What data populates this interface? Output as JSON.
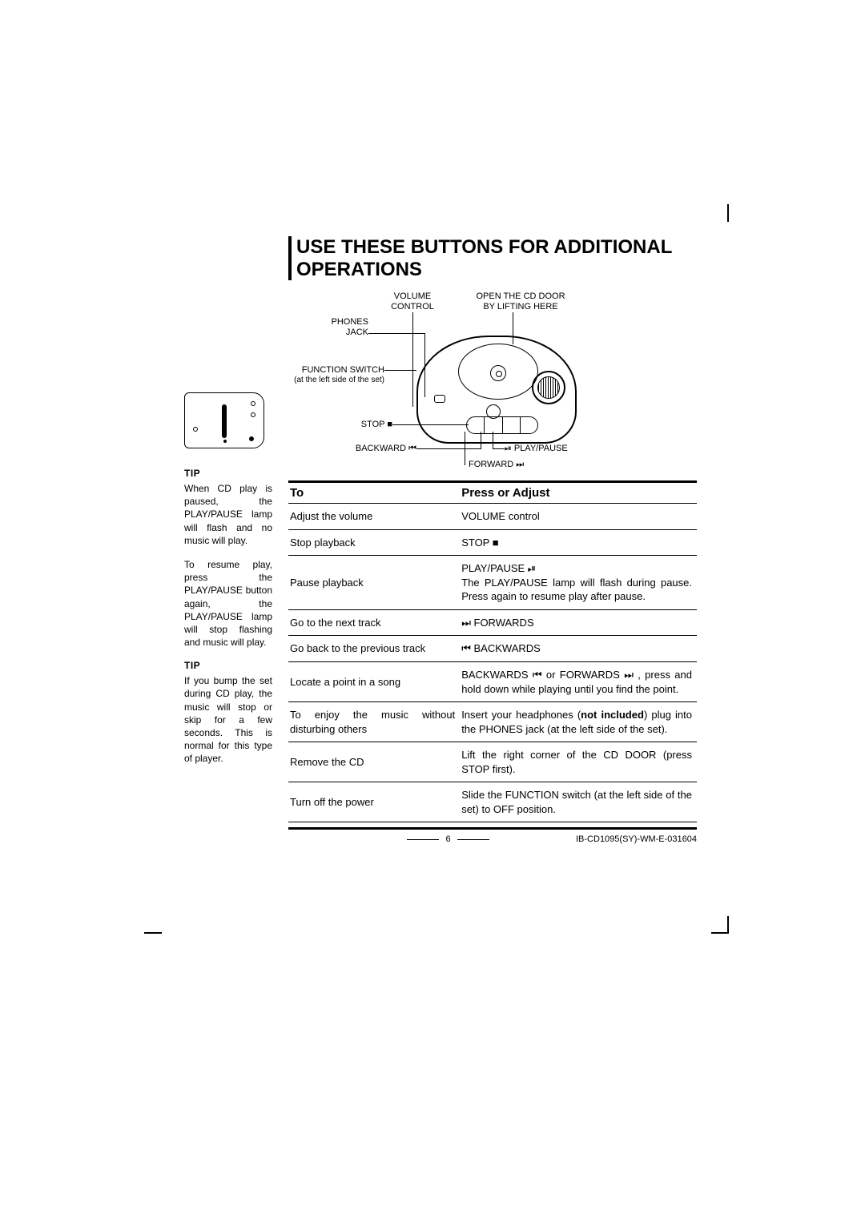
{
  "title": "USE THESE BUTTONS FOR ADDITIONAL OPERATIONS",
  "diagram": {
    "volume": "VOLUME\nCONTROL",
    "open": "OPEN THE CD DOOR\nBY LIFTING HERE",
    "phones": "PHONES\nJACK",
    "function": "FUNCTION SWITCH",
    "function_note": "(at the left side of the set)",
    "stop": "STOP ■",
    "backward": "BACKWARD ⏮",
    "forward": "FORWARD ⏭",
    "playpause": "⏯ PLAY/PAUSE"
  },
  "table": {
    "head_to": "To",
    "head_pa": "Press or Adjust",
    "rows": [
      {
        "to": "Adjust the volume",
        "pa": "VOLUME control"
      },
      {
        "to": "Stop playback",
        "pa": "STOP ■"
      },
      {
        "to": "Pause playback",
        "pa": "PLAY/PAUSE ⏯\nThe PLAY/PAUSE lamp will flash during pause. Press again to resume play after pause."
      },
      {
        "to": "Go to the next track",
        "pa": "⏭ FORWARDS"
      },
      {
        "to": "Go back to the previous track",
        "pa": "⏮ BACKWARDS"
      },
      {
        "to": "Locate a point in a song",
        "pa": "BACKWARDS ⏮ or FORWARDS ⏭ , press and hold down while playing until you find the point."
      },
      {
        "to": "To enjoy the music without disturbing others",
        "pa": "Insert your headphones (not included) plug into the PHONES jack (at the left side of the set)."
      },
      {
        "to": "Remove the CD",
        "pa": "Lift the right corner of the CD DOOR (press STOP first)."
      },
      {
        "to": "Turn off the power",
        "pa": "Slide the FUNCTION switch (at the left side of the set) to OFF position."
      }
    ]
  },
  "footer": {
    "page": "6",
    "code": "IB-CD1095(SY)-WM-E-031604"
  },
  "side": {
    "tip": "TIP",
    "p1": "When CD play is paused, the PLAY/PAUSE lamp will flash and no music will play.",
    "p2": "To resume play, press the PLAY/PAUSE button again, the PLAY/PAUSE lamp will stop flashing and music will play.",
    "p3": "If you bump the set during CD play, the music will stop or skip for a few seconds. This is normal for this type of player."
  },
  "colors": {
    "text": "#000000",
    "bg": "#ffffff"
  }
}
